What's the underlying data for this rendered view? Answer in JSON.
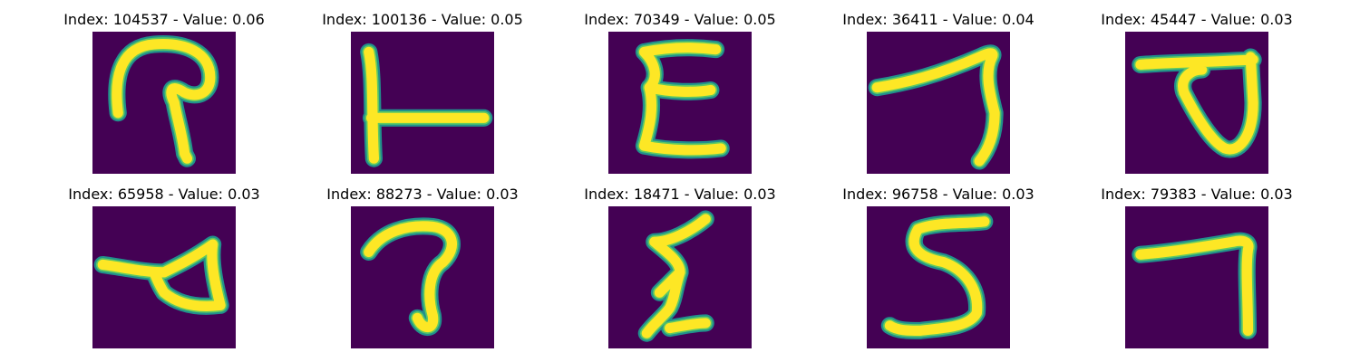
{
  "figure": {
    "colors": {
      "background": "#440154",
      "stroke_edge": "#21918c",
      "stroke_mid": "#5ec962",
      "stroke_core": "#fde725"
    },
    "panels": [
      {
        "title": "Index: 104537 - Value: 0.06",
        "glyph": "loop-stroke"
      },
      {
        "title": "Index: 100136 - Value: 0.05",
        "glyph": "L-stroke"
      },
      {
        "title": "Index: 70349 - Value: 0.05",
        "glyph": "epsilon-stroke"
      },
      {
        "title": "Index: 36411 - Value: 0.04",
        "glyph": "seven-stroke"
      },
      {
        "title": "Index: 45447 - Value: 0.03",
        "glyph": "flag-loop-stroke"
      },
      {
        "title": "Index: 65958 - Value: 0.03",
        "glyph": "triangle-stroke"
      },
      {
        "title": "Index: 88273 - Value: 0.03",
        "glyph": "hook-stroke"
      },
      {
        "title": "Index: 18471 - Value: 0.03",
        "glyph": "zigzag-stroke"
      },
      {
        "title": "Index: 96758 - Value: 0.03",
        "glyph": "five-stroke"
      },
      {
        "title": "Index: 79383 - Value: 0.03",
        "glyph": "seven-stroke"
      }
    ]
  }
}
